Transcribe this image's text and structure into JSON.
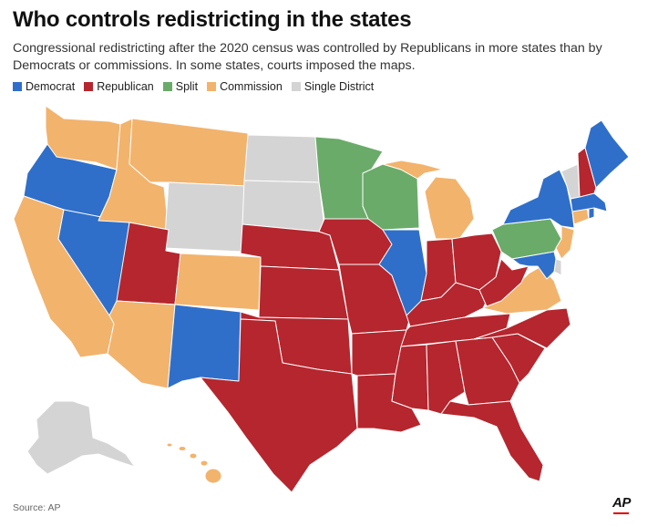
{
  "title": "Who controls redistricting in the states",
  "subtitle": "Congressional redistricting after the 2020 census was controlled by Republicans in more states than by Democrats or commissions. In some states, courts imposed the maps.",
  "legend": [
    {
      "label": "Democrat",
      "key": "D",
      "color": "#2f6fca"
    },
    {
      "label": "Republican",
      "key": "R",
      "color": "#b5262e"
    },
    {
      "label": "Split",
      "key": "S",
      "color": "#6aab6a"
    },
    {
      "label": "Commission",
      "key": "C",
      "color": "#f2b36d"
    },
    {
      "label": "Single District",
      "key": "X",
      "color": "#d4d4d4"
    }
  ],
  "states": {
    "WA": "C",
    "OR": "D",
    "CA": "C",
    "NV": "D",
    "ID": "C",
    "MT": "C",
    "WY": "X",
    "UT": "R",
    "AZ": "C",
    "CO": "C",
    "NM": "D",
    "ND": "X",
    "SD": "X",
    "NE": "R",
    "KS": "R",
    "OK": "R",
    "TX": "R",
    "MN": "S",
    "IA": "R",
    "MO": "R",
    "AR": "R",
    "LA": "R",
    "WI": "S",
    "IL": "D",
    "MI": "C",
    "IN": "R",
    "OH": "R",
    "KY": "R",
    "TN": "R",
    "MS": "R",
    "AL": "R",
    "GA": "R",
    "FL": "R",
    "SC": "R",
    "NC": "R",
    "VA": "C",
    "WV": "R",
    "PA": "S",
    "NY": "D",
    "NJ": "C",
    "DE": "X",
    "MD": "D",
    "CT": "C",
    "RI": "D",
    "MA": "D",
    "VT": "X",
    "NH": "R",
    "ME": "D",
    "AK": "X",
    "HI": "C"
  },
  "source": "Source: AP",
  "logo": "AP"
}
